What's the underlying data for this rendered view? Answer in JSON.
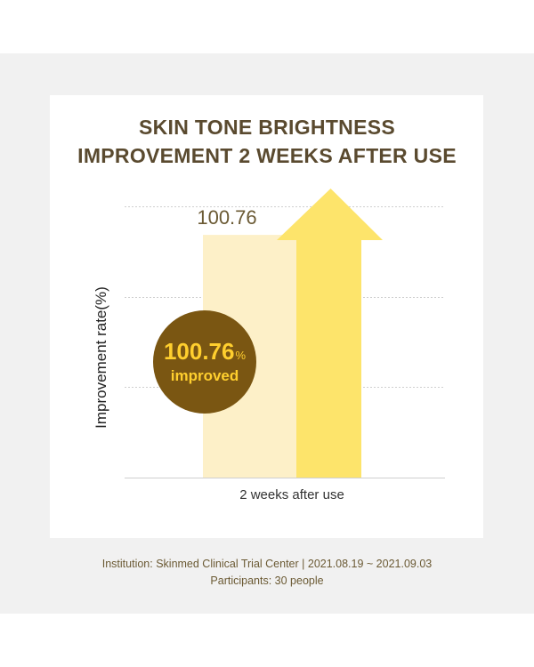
{
  "title": {
    "line1": "SKIN TONE BRIGHTNESS",
    "line2": "IMPROVEMENT 2 WEEKS AFTER USE"
  },
  "chart_data": {
    "type": "bar",
    "categories": [
      "2 weeks after use"
    ],
    "values": [
      100.76
    ],
    "value_label": "100.76",
    "ylabel": "Improvement rate(%)",
    "ylim": [
      0,
      120
    ],
    "grid": true,
    "badge": {
      "value": "100.76",
      "unit": "%",
      "text": "improved"
    },
    "colors": {
      "bar": "#fdf0c8",
      "arrow": "#fde46b",
      "badge": "#7a5612",
      "badge_text": "#ffcf2e",
      "value_label": "#6b5a34",
      "gridline": "#cfcfcf",
      "axis": "#cfcfcf"
    }
  },
  "footer": {
    "line1": "Institution: Skinmed Clinical Trial Center | 2021.08.19 ~ 2021.09.03",
    "line2": "Participants: 30 people"
  }
}
